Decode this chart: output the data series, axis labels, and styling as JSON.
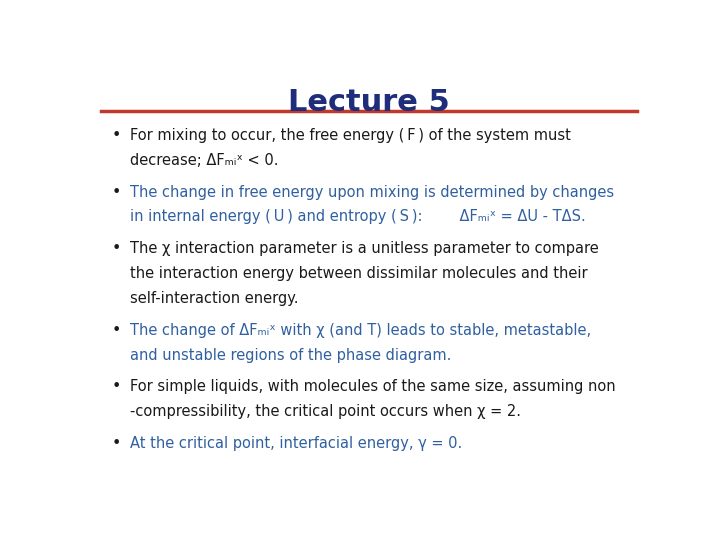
{
  "title": "Lecture 5",
  "title_color": "#1F2D7B",
  "title_fontsize": 22,
  "line_color": "#C0392B",
  "background_color": "#FFFFFF",
  "text_color_black": "#1a1a1a",
  "text_color_blue": "#3060A0",
  "bullets": [
    {
      "lines": [
        "For mixing to occur, the free energy ( F ) of the system must",
        "decrease; ΔFₘᵢˣ < 0."
      ],
      "color": "black"
    },
    {
      "lines": [
        "The change in free energy upon mixing is determined by changes",
        "in internal energy ( U ) and entropy ( S ):        ΔFₘᵢˣ = ΔU - TΔS."
      ],
      "color": "blue"
    },
    {
      "lines": [
        "The χ interaction parameter is a unitless parameter to compare",
        "the interaction energy between dissimilar molecules and their",
        "self-interaction energy."
      ],
      "color": "black"
    },
    {
      "lines": [
        "The change of ΔFₘᵢˣ with χ (and T) leads to stable, metastable,",
        "and unstable regions of the phase diagram."
      ],
      "color": "blue"
    },
    {
      "lines": [
        "For simple liquids, with molecules of the same size, assuming non",
        "-compressibility, the critical point occurs when χ = 2."
      ],
      "color": "black"
    },
    {
      "lines": [
        "At the critical point, interfacial energy, γ = 0."
      ],
      "color": "blue"
    }
  ]
}
